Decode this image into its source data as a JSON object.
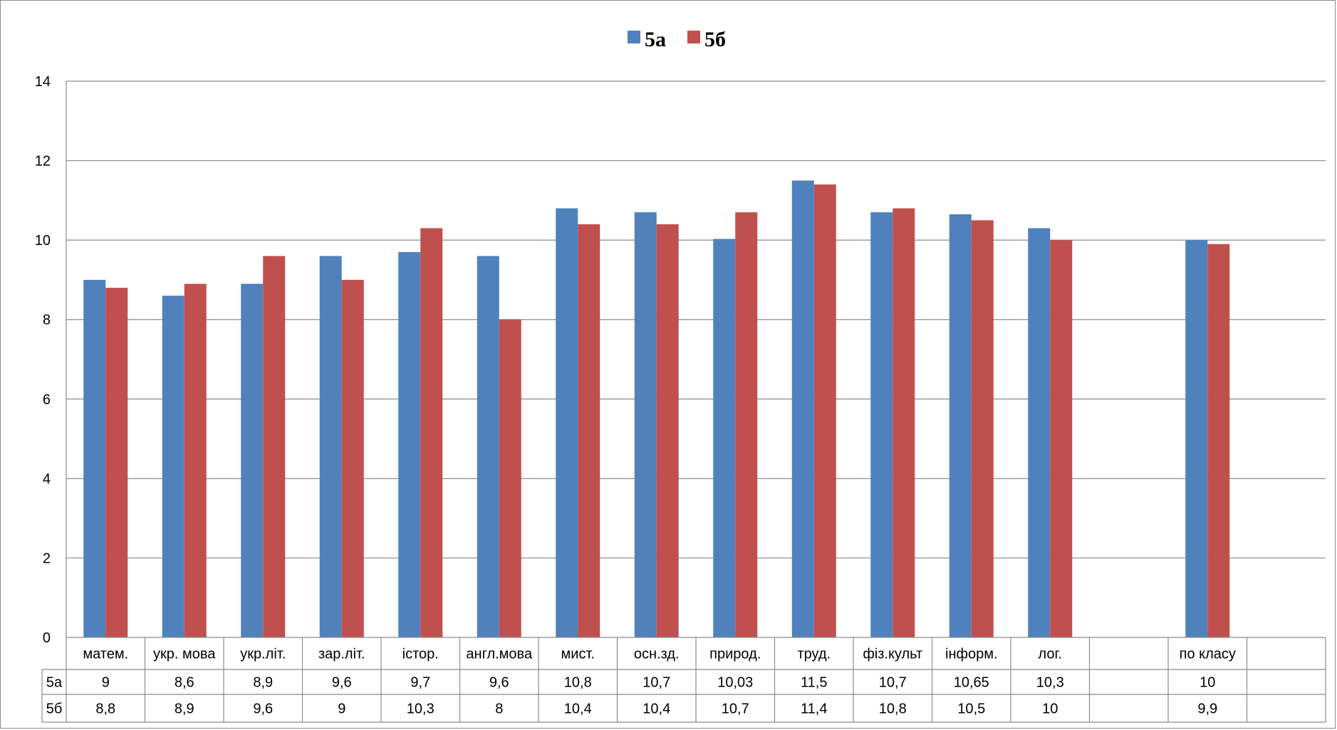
{
  "chart_data": {
    "type": "bar",
    "categories": [
      "матем.",
      "укр. мова",
      "укр.літ.",
      "зар.літ.",
      "істор.",
      "англ.мова",
      "мист.",
      "осн.зд.",
      "природ.",
      "труд.",
      "фіз.культ",
      "інформ.",
      "лог.",
      "",
      "по класу",
      ""
    ],
    "series": [
      {
        "name": "5а",
        "color": "#4f81bd",
        "values": [
          9,
          8.6,
          8.9,
          9.6,
          9.7,
          9.6,
          10.8,
          10.7,
          10.03,
          11.5,
          10.7,
          10.65,
          10.3,
          null,
          10,
          null
        ],
        "labels": [
          "9",
          "8,6",
          "8,9",
          "9,6",
          "9,7",
          "9,6",
          "10,8",
          "10,7",
          "10,03",
          "11,5",
          "10,7",
          "10,65",
          "10,3",
          "",
          "10",
          ""
        ]
      },
      {
        "name": "5б",
        "color": "#c0504d",
        "values": [
          8.8,
          8.9,
          9.6,
          9,
          10.3,
          8,
          10.4,
          10.4,
          10.7,
          11.4,
          10.8,
          10.5,
          10,
          null,
          9.9,
          null
        ],
        "labels": [
          "8,8",
          "8,9",
          "9,6",
          "9",
          "10,3",
          "8",
          "10,4",
          "10,4",
          "10,7",
          "11,4",
          "10,8",
          "10,5",
          "10",
          "",
          "9,9",
          ""
        ]
      }
    ],
    "ylim": [
      0,
      14
    ],
    "yticks": [
      0,
      2,
      4,
      6,
      8,
      10,
      12,
      14
    ],
    "ytick_labels": [
      "0",
      "2",
      "4",
      "6",
      "8",
      "10",
      "12",
      "14"
    ],
    "grid": true,
    "legend_position": "top-center",
    "data_table": true
  }
}
